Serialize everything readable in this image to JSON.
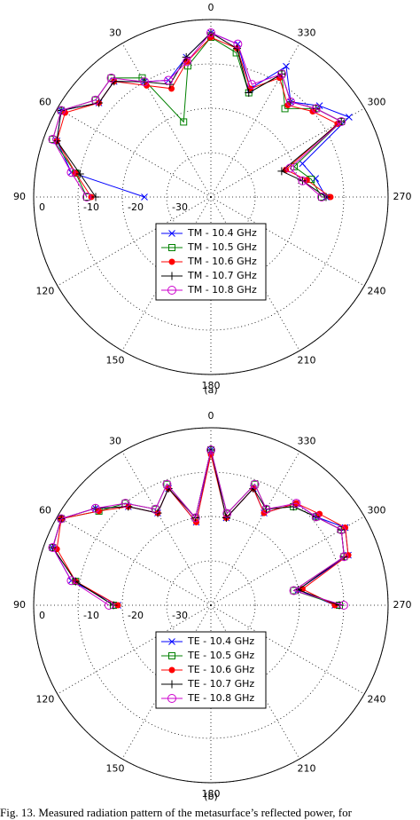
{
  "chart_data": [
    {
      "type": "polar",
      "label": "(a)",
      "x": [
        90,
        80,
        70,
        60,
        50,
        40,
        30,
        20,
        10,
        0,
        350,
        340,
        330,
        320,
        310,
        300,
        290,
        280,
        270
      ],
      "series": [
        {
          "name": "TM - 10.4 GHz",
          "color": "#0000ff",
          "marker": "x",
          "values": [
            -25,
            -8,
            -3,
            -1,
            -7,
            -6,
            -10,
            -12,
            -8,
            -3,
            -5,
            -14,
            -6,
            -12,
            -8,
            -4,
            -18,
            -16,
            -14
          ]
        },
        {
          "name": "TM - 10.5 GHz",
          "color": "#008000",
          "marker": "square",
          "values": [
            -12,
            -9,
            -2,
            -1,
            -6,
            -5,
            -9,
            -22,
            -10,
            -4,
            -7,
            -15,
            -8,
            -14,
            -9,
            -6,
            -20,
            -17,
            -15
          ]
        },
        {
          "name": "TM - 10.6 GHz",
          "color": "#ff0000",
          "marker": "dot",
          "values": [
            -13,
            -9,
            -3,
            -2,
            -7,
            -6,
            -11,
            -14,
            -9,
            -4,
            -6,
            -14,
            -9,
            -13,
            -10,
            -7,
            -22,
            -18,
            -13
          ]
        },
        {
          "name": "TM - 10.7 GHz",
          "color": "#000000",
          "marker": "plus",
          "values": [
            -14,
            -10,
            -3,
            -1,
            -7,
            -6,
            -10,
            -13,
            -8,
            -3,
            -6,
            -15,
            -8,
            -12,
            -9,
            -6,
            -23,
            -19,
            -14
          ]
        },
        {
          "name": "TM - 10.8 GHz",
          "color": "#cc00cc",
          "marker": "circle",
          "values": [
            -12,
            -8,
            -2,
            -1,
            -6,
            -5,
            -10,
            -12,
            -9,
            -3,
            -5,
            -13,
            -8,
            -12,
            -9,
            -6,
            -21,
            -19,
            -15
          ]
        }
      ],
      "rlim": [
        -40,
        0
      ],
      "rticks": [
        -30,
        -20,
        -10,
        0
      ],
      "thetaticks": [
        0,
        30,
        60,
        90,
        120,
        150,
        180,
        210,
        240,
        270,
        300,
        330
      ],
      "grid": true,
      "legend": "lower center"
    },
    {
      "type": "polar",
      "label": "(b)",
      "x": [
        90,
        80,
        70,
        60,
        50,
        40,
        30,
        20,
        10,
        0,
        350,
        340,
        330,
        320,
        310,
        300,
        290,
        280,
        270
      ],
      "series": [
        {
          "name": "TE - 10.4 GHz",
          "color": "#0000ff",
          "marker": "x",
          "values": [
            -19,
            -8,
            -2,
            -1,
            -6,
            -11,
            -16,
            -12,
            -21,
            -5,
            -20,
            -12,
            -16,
            -10,
            -9,
            -5,
            -7,
            -20,
            -12
          ]
        },
        {
          "name": "TE - 10.5 GHz",
          "color": "#008000",
          "marker": "square",
          "values": [
            -18,
            -9,
            -2,
            -1,
            -7,
            -10,
            -15,
            -11,
            -20,
            -5,
            -19,
            -11,
            -15,
            -11,
            -9,
            -6,
            -8,
            -21,
            -11
          ]
        },
        {
          "name": "TE - 10.6 GHz",
          "color": "#ff0000",
          "marker": "dot",
          "values": [
            -19,
            -9,
            -3,
            -1,
            -7,
            -11,
            -16,
            -12,
            -21,
            -6,
            -20,
            -12,
            -16,
            -10,
            -8,
            -5,
            -7,
            -19,
            -12
          ]
        },
        {
          "name": "TE - 10.7 GHz",
          "color": "#000000",
          "marker": "plus",
          "values": [
            -18,
            -9,
            -2,
            -1,
            -6,
            -11,
            -16,
            -12,
            -20,
            -5,
            -20,
            -12,
            -15,
            -11,
            -9,
            -6,
            -8,
            -20,
            -11
          ]
        },
        {
          "name": "TE - 10.8 GHz",
          "color": "#cc00cc",
          "marker": "circle",
          "values": [
            -17,
            -8,
            -2,
            -1,
            -6,
            -10,
            -15,
            -11,
            -20,
            -5,
            -19,
            -11,
            -15,
            -10,
            -9,
            -6,
            -8,
            -21,
            -10
          ]
        }
      ],
      "rlim": [
        -40,
        0
      ],
      "rticks": [
        -30,
        -20,
        -10,
        0
      ],
      "thetaticks": [
        0,
        30,
        60,
        90,
        120,
        150,
        180,
        210,
        240,
        270,
        300,
        330
      ],
      "grid": true,
      "legend": "lower center"
    }
  ],
  "caption": "Fig. 13.   Measured radiation pattern of the metasurface’s reflected power, for"
}
